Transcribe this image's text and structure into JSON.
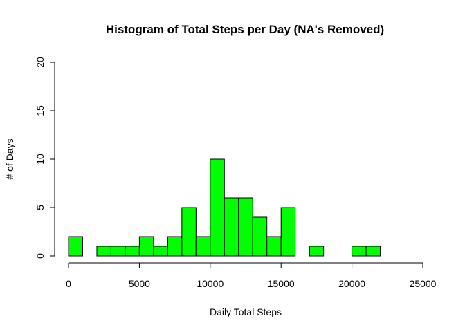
{
  "chart_data": {
    "type": "bar",
    "title": "Histogram of Total Steps per Day  (NA's Removed)",
    "xlabel": "Daily Total Steps",
    "ylabel": "# of Days",
    "bin_width": 1000,
    "bin_starts": [
      0,
      1000,
      2000,
      3000,
      4000,
      5000,
      6000,
      7000,
      8000,
      9000,
      10000,
      11000,
      12000,
      13000,
      14000,
      15000,
      16000,
      17000,
      18000,
      19000,
      20000,
      21000
    ],
    "values": [
      2,
      0,
      1,
      1,
      1,
      2,
      1,
      2,
      5,
      2,
      10,
      6,
      6,
      4,
      2,
      5,
      0,
      1,
      0,
      0,
      1,
      1
    ],
    "xlim": [
      0,
      25000
    ],
    "ylim": [
      0,
      20
    ],
    "xticks": [
      "0",
      "5000",
      "10000",
      "15000",
      "20000",
      "25000"
    ],
    "yticks": [
      "0",
      "5",
      "10",
      "15",
      "20"
    ],
    "bar_color": "#00ff00",
    "border_color": "#000000",
    "grid": false,
    "legend": "none"
  }
}
